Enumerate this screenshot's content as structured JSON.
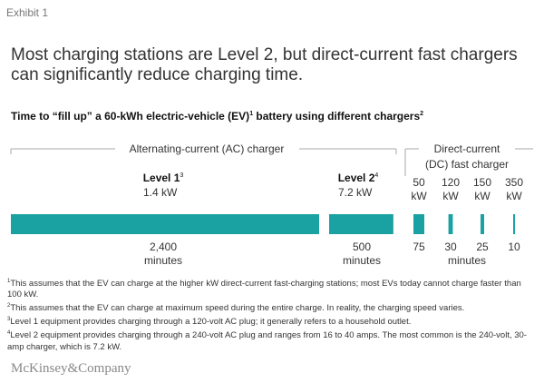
{
  "exhibit_label": "Exhibit 1",
  "headline": "Most charging stations are Level 2, but direct-current fast chargers can significantly reduce charging time.",
  "subtitle": {
    "text_before": "Time to “fill up” a 60-kWh electric-vehicle (EV)",
    "sup1": "1",
    "text_after": " battery using different chargers",
    "sup2": "2"
  },
  "group_labels": {
    "ac": "Alternating-current (AC) charger",
    "dc_line1": "Direct-current",
    "dc_line2": "(DC) fast charger"
  },
  "chart_data": {
    "type": "bar",
    "orientation": "horizontal-segments",
    "bar_color": "#1aa1a1",
    "unit": "minutes",
    "series": [
      {
        "name": "Level 1",
        "sup": "3",
        "power": "1.4 kW",
        "value": 2400,
        "value_label": "2,400",
        "unit_label": "minutes",
        "group": "AC"
      },
      {
        "name": "Level 2",
        "sup": "4",
        "power": "7.2 kW",
        "value": 500,
        "value_label": "500",
        "unit_label": "minutes",
        "group": "AC"
      },
      {
        "name": "",
        "power_value": "50",
        "power_unit": "kW",
        "value": 75,
        "value_label": "75",
        "group": "DC"
      },
      {
        "name": "",
        "power_value": "120",
        "power_unit": "kW",
        "value": 30,
        "value_label": "30",
        "group": "DC"
      },
      {
        "name": "",
        "power_value": "150",
        "power_unit": "kW",
        "value": 25,
        "value_label": "25",
        "group": "DC"
      },
      {
        "name": "",
        "power_value": "350",
        "power_unit": "kW",
        "value": 10,
        "value_label": "10",
        "group": "DC"
      }
    ],
    "dc_unit_label": "minutes"
  },
  "footnotes": [
    {
      "sup": "1",
      "text": "This assumes that the EV can charge at the higher kW direct-current fast-charging stations; most EVs today cannot charge faster than 100 kW."
    },
    {
      "sup": "2",
      "text": "This assumes that the EV can charge at maximum speed during the entire charge. In reality, the charging speed varies."
    },
    {
      "sup": "3",
      "text": "Level 1 equipment provides charging through a 120-volt AC plug; it generally refers to a household outlet."
    },
    {
      "sup": "4",
      "text": "Level 2 equipment provides charging through a 240-volt AC plug and ranges from 16 to 40 amps. The most common is the 240-volt, 30-amp charger, which is 7.2 kW."
    }
  ],
  "logo": "McKinsey&Company"
}
